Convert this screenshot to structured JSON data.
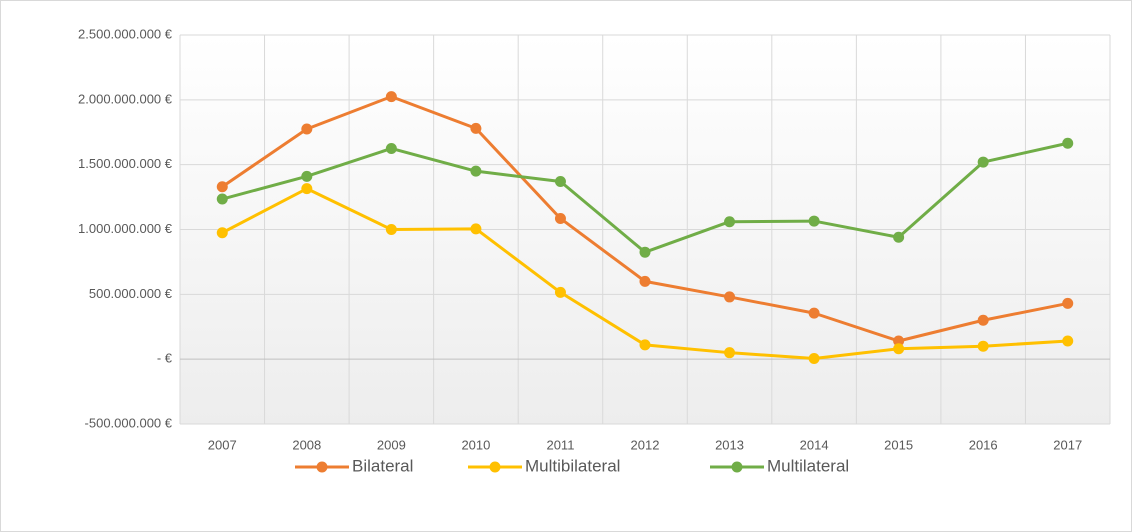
{
  "chart_data": {
    "type": "line",
    "categories": [
      "2007",
      "2008",
      "2009",
      "2010",
      "2011",
      "2012",
      "2013",
      "2014",
      "2015",
      "2016",
      "2017"
    ],
    "series": [
      {
        "name": "Bilateral",
        "color": "#ed7d31",
        "values": [
          1330000000,
          1775000000,
          2025000000,
          1780000000,
          1085000000,
          600000000,
          480000000,
          355000000,
          140000000,
          300000000,
          430000000
        ]
      },
      {
        "name": "Multibilateral",
        "color": "#ffc000",
        "values": [
          975000000,
          1315000000,
          1000000000,
          1005000000,
          515000000,
          110000000,
          50000000,
          5000000,
          80000000,
          100000000,
          140000000
        ]
      },
      {
        "name": "Multilateral",
        "color": "#70ad47",
        "values": [
          1235000000,
          1410000000,
          1625000000,
          1450000000,
          1370000000,
          825000000,
          1060000000,
          1065000000,
          940000000,
          1520000000,
          1665000000
        ]
      }
    ],
    "ylim": [
      -500000000,
      2500000000
    ],
    "yticks": [
      {
        "value": -500000000,
        "label": "-500.000.000 €"
      },
      {
        "value": 0,
        "label": "-   €"
      },
      {
        "value": 500000000,
        "label": "500.000.000 €"
      },
      {
        "value": 1000000000,
        "label": "1.000.000.000 €"
      },
      {
        "value": 1500000000,
        "label": "1.500.000.000 €"
      },
      {
        "value": 2000000000,
        "label": "2.000.000.000 €"
      },
      {
        "value": 2500000000,
        "label": "2.500.000.000 €"
      }
    ],
    "grid": true,
    "legend": "bottom"
  }
}
